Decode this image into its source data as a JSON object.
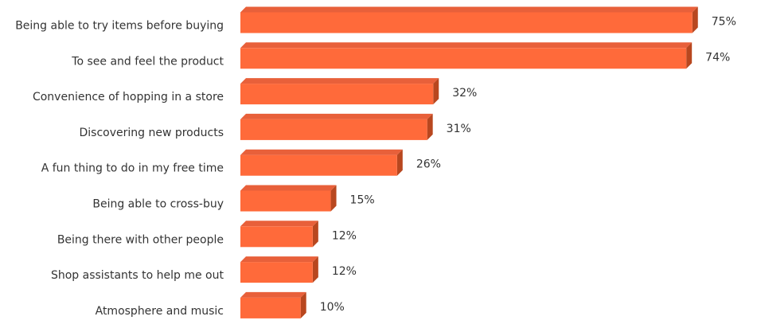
{
  "chart_data": {
    "type": "bar",
    "orientation": "horizontal",
    "categories": [
      "Being able to try items before buying",
      "To see and feel the product",
      "Convenience of hopping in a store",
      "Discovering new products",
      "A fun thing to do in my free time",
      "Being able to cross-buy",
      "Being there with other people",
      "Shop assistants to help me out",
      "Atmosphere and music"
    ],
    "values": [
      75,
      74,
      32,
      31,
      26,
      15,
      12,
      12,
      10
    ],
    "value_labels": [
      "75%",
      "74%",
      "32%",
      "31%",
      "26%",
      "15%",
      "12%",
      "12%",
      "10%"
    ],
    "color": "#ff6a3a"
  }
}
